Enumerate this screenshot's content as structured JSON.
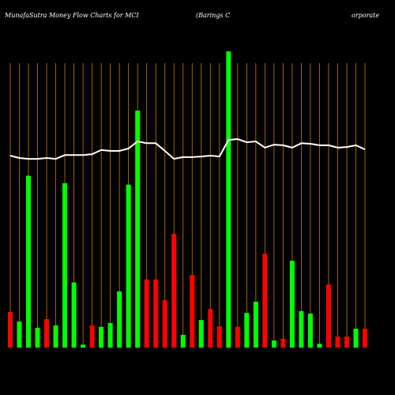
{
  "chart_data": {
    "type": "bar",
    "title": "MunafaSutra  Money Flow  Charts for MCI",
    "subtitle": "(Barings C",
    "subtitle_end": "orporate",
    "categories": [
      null,
      null,
      null,
      null,
      null,
      null,
      null,
      null,
      null,
      null,
      null,
      null,
      null,
      null,
      null,
      null,
      null,
      null,
      null,
      null,
      null,
      null,
      null,
      null,
      null,
      null,
      null,
      null,
      null,
      null,
      null,
      null,
      null,
      null,
      null,
      null,
      null,
      null,
      null,
      null
    ],
    "values": [
      12,
      8.8,
      58,
      6.7,
      9.6,
      7.5,
      55.5,
      22,
      1,
      7.5,
      7,
      8.3,
      19,
      55,
      80,
      23,
      23,
      16,
      38.4,
      4.3,
      24.5,
      9.3,
      13,
      7.2,
      100,
      7,
      11.7,
      15.5,
      31.7,
      2.4,
      3,
      29.3,
      12.3,
      11.5,
      1.3,
      21.3,
      3.7,
      3.7,
      6.4,
      6.4
    ],
    "bar_colors": [
      "#ff0000",
      "#00ff00",
      "#00ff00",
      "#00ff00",
      "#ff0000",
      "#00ff00",
      "#00ff00",
      "#00ff00",
      "#00ff00",
      "#ff0000",
      "#00ff00",
      "#00ff00",
      "#00ff00",
      "#00ff00",
      "#00ff00",
      "#ff0000",
      "#ff0000",
      "#ff0000",
      "#ff0000",
      "#00ff00",
      "#ff0000",
      "#00ff00",
      "#ff0000",
      "#ff0000",
      "#00ff00",
      "#ff0000",
      "#00ff00",
      "#00ff00",
      "#ff0000",
      "#00ff00",
      "#ff0000",
      "#00ff00",
      "#00ff00",
      "#00ff00",
      "#00ff00",
      "#ff0000",
      "#ff0000",
      "#ff0000",
      "#00ff00",
      "#ff0000"
    ],
    "line_values": [
      64.8,
      64,
      63.7,
      63.7,
      64,
      63.7,
      65,
      65,
      65,
      65.3,
      66.7,
      66.4,
      66.4,
      67.2,
      69.6,
      69,
      69,
      66.4,
      63.7,
      64.3,
      64.3,
      64.5,
      64.8,
      64.5,
      70.1,
      70.4,
      69.3,
      69.6,
      67.5,
      68.5,
      68.3,
      67.5,
      69,
      68.8,
      68.3,
      68.3,
      67.5,
      67.7,
      68.3,
      66.9
    ],
    "line_color": "#ffffff",
    "ylim": [
      0,
      100
    ],
    "grid": true,
    "grid_color": "#cc7a00"
  }
}
